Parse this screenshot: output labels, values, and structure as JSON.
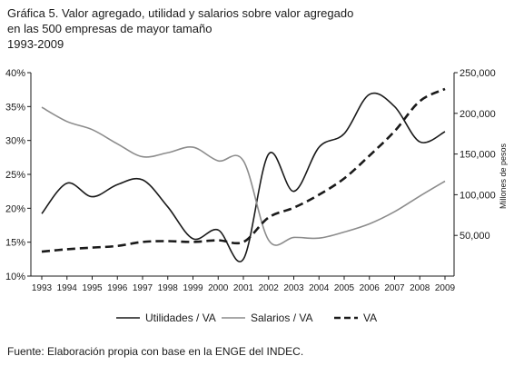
{
  "title": {
    "line1": "Gráfica 5. Valor agregado, utilidad y salarios sobre valor agregado",
    "line2": "en las 500 empresas de mayor tamaño",
    "line3": "1993-2009"
  },
  "source": "Fuente: Elaboración propia con base en la ENGE del INDEC.",
  "chart_data": {
    "type": "line",
    "x": [
      "1993",
      "1994",
      "1995",
      "1996",
      "1997",
      "1998",
      "1999",
      "2000",
      "2001",
      "2002",
      "2003",
      "2004",
      "2005",
      "2006",
      "2007",
      "2008",
      "2009"
    ],
    "left_axis": {
      "ylim": [
        10,
        40
      ],
      "ticks": [
        "10%",
        "15%",
        "20%",
        "25%",
        "30%",
        "35%",
        "40%"
      ],
      "tick_values": [
        10,
        15,
        20,
        25,
        30,
        35,
        40
      ]
    },
    "right_axis": {
      "label": "Millones de pesos",
      "ylim": [
        0,
        250000
      ],
      "ticks": [
        "50,000",
        "100,000",
        "150,000",
        "200,000",
        "250,000"
      ],
      "tick_values": [
        50000,
        100000,
        150000,
        200000,
        250000
      ]
    },
    "series": [
      {
        "name": "Utilidades / VA",
        "axis": "left",
        "style": "solid",
        "color": "#1a1a1a",
        "values": [
          19.2,
          23.7,
          21.7,
          23.5,
          24.2,
          20.2,
          15.5,
          16.8,
          12.5,
          28.0,
          22.5,
          29.0,
          31.0,
          36.8,
          35.0,
          29.8,
          31.3
        ]
      },
      {
        "name": "Salarios / VA",
        "axis": "left",
        "style": "solid",
        "color": "#8c8c8c",
        "values": [
          34.9,
          32.8,
          31.6,
          29.5,
          27.6,
          28.2,
          29.0,
          27.0,
          27.0,
          15.3,
          15.7,
          15.6,
          16.5,
          17.7,
          19.5,
          21.8,
          24.0
        ]
      },
      {
        "name": "VA",
        "axis": "right",
        "style": "dashed",
        "color": "#1a1a1a",
        "values": [
          30000,
          33000,
          35000,
          37000,
          42000,
          43000,
          42000,
          44000,
          42000,
          72000,
          84000,
          100000,
          120000,
          148000,
          178000,
          215000,
          230000
        ]
      }
    ],
    "grid": false,
    "legend_position": "bottom"
  }
}
